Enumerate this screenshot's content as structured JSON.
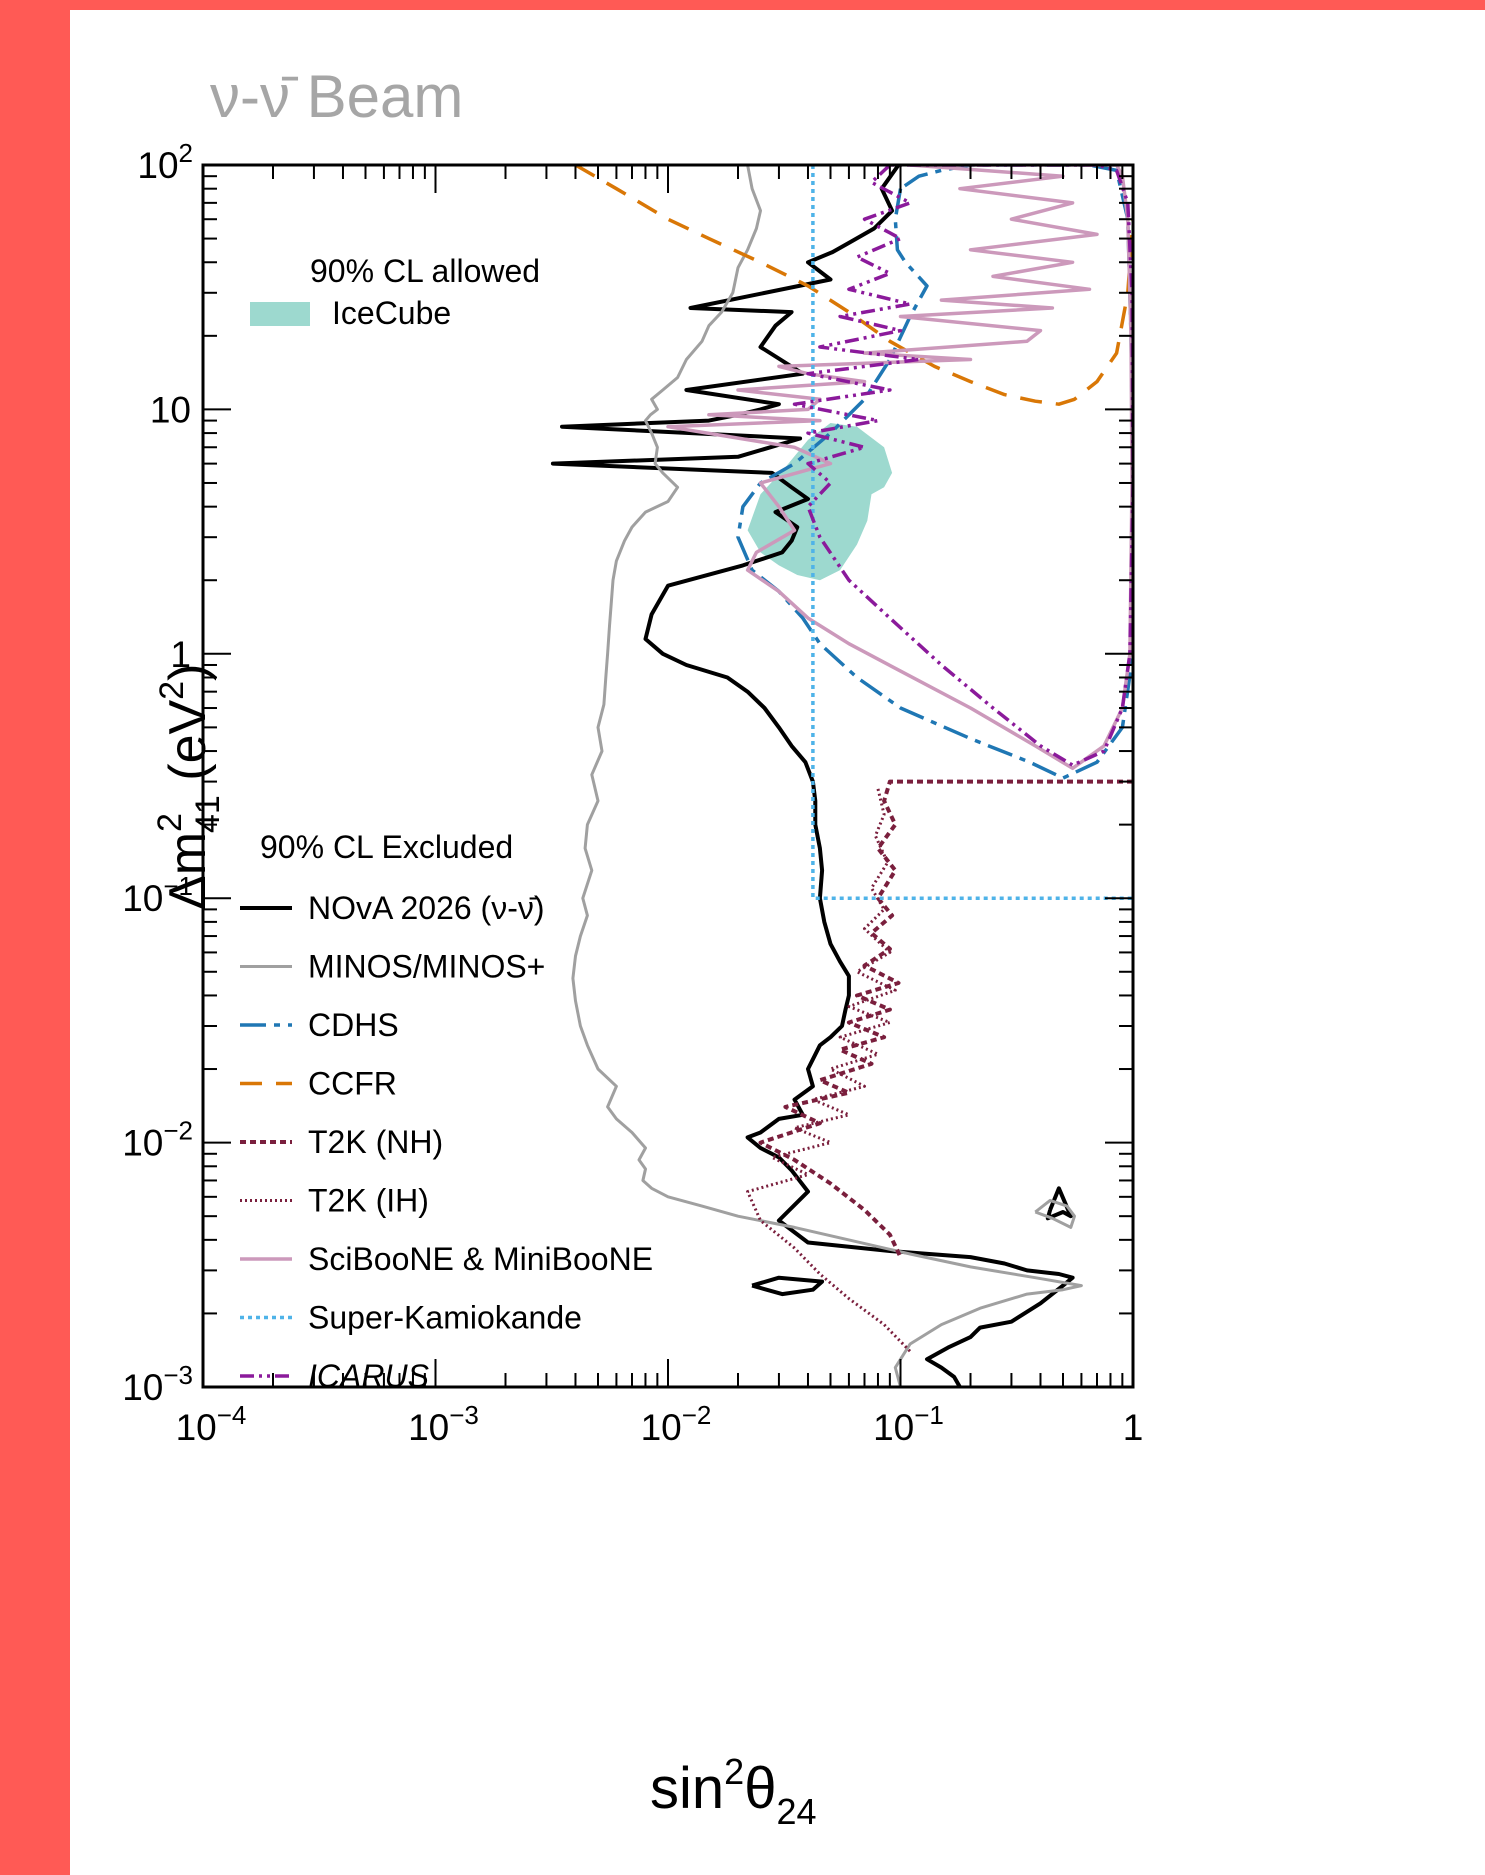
{
  "chart_data": {
    "type": "line",
    "title": "ν-ν̄ Beam",
    "x_label": {
      "base": "sin",
      "sup": "2",
      "main": "θ",
      "sub": "24"
    },
    "y_label": {
      "pre": "Δm",
      "sup": "2",
      "sub": "41",
      "post": " (eV",
      "post_sup": "2",
      "close": ")"
    },
    "x_scale": "log",
    "y_scale": "log",
    "xlim": [
      0.0001,
      1
    ],
    "ylim": [
      0.001,
      100
    ],
    "x_ticks": [
      {
        "v": 0.0001,
        "base": "10",
        "exp": "−4"
      },
      {
        "v": 0.001,
        "base": "10",
        "exp": "−3"
      },
      {
        "v": 0.01,
        "base": "10",
        "exp": "−2"
      },
      {
        "v": 0.1,
        "base": "10",
        "exp": "−1"
      },
      {
        "v": 1,
        "base": "1",
        "exp": ""
      }
    ],
    "y_ticks": [
      {
        "v": 0.001,
        "base": "10",
        "exp": "−3"
      },
      {
        "v": 0.01,
        "base": "10",
        "exp": "−2"
      },
      {
        "v": 0.1,
        "base": "10",
        "exp": "−1"
      },
      {
        "v": 1,
        "base": "1",
        "exp": ""
      },
      {
        "v": 10,
        "base": "10",
        "exp": ""
      },
      {
        "v": 100,
        "base": "10",
        "exp": "2"
      }
    ],
    "legend_allowed": {
      "header": "90% CL allowed",
      "entries": [
        {
          "label": "IceCube",
          "color": "#9dd9cf"
        }
      ]
    },
    "legend_excluded": {
      "header": "90% CL Excluded",
      "entries": [
        {
          "label": "NOvA 2026 (ν-ν̄)",
          "color": "#000000",
          "dash": "",
          "width": 4
        },
        {
          "label": "MINOS/MINOS+",
          "color": "#a0a0a0",
          "dash": "",
          "width": 3
        },
        {
          "label": "CDHS",
          "color": "#1f77b4",
          "dash": "26,8,6,8",
          "width": 3.5
        },
        {
          "label": "CCFR",
          "color": "#d97706",
          "dash": "22,14",
          "width": 3.5
        },
        {
          "label": "T2K (NH)",
          "color": "#7a1f3d",
          "dash": "6,4",
          "width": 4
        },
        {
          "label": "T2K (IH)",
          "color": "#7a1f3d",
          "dash": "2,3",
          "width": 3
        },
        {
          "label": "SciBooNE & MiniBooNE",
          "color": "#cc99bb",
          "dash": "",
          "width": 3.5
        },
        {
          "label": "Super-Kamiokande",
          "color": "#4fb3e8",
          "dash": "4,4",
          "width": 3.5
        },
        {
          "label": "ICARUS",
          "color": "#8b1a9b",
          "dash": "14,5,3,5,3,5",
          "width": 3.5,
          "italic": true
        }
      ]
    },
    "series": [
      {
        "name": "NOvA 2026 (ν-ν̄)",
        "color": "#000000",
        "dash": "",
        "width": 4,
        "x": [
          0.098,
          0.083,
          0.092,
          0.077,
          0.06,
          0.051,
          0.04,
          0.05,
          0.0125,
          0.034,
          0.029,
          0.025,
          0.038,
          0.012,
          0.03,
          0.025,
          0.02,
          0.015,
          0.0035,
          0.037,
          0.02,
          0.0032,
          0.028,
          0.034,
          0.04,
          0.029,
          0.036,
          0.034,
          0.031,
          0.021,
          0.01,
          0.0085,
          0.008,
          0.0095,
          0.012,
          0.018,
          0.022,
          0.026,
          0.03,
          0.034,
          0.039,
          0.042,
          0.043,
          0.043,
          0.045,
          0.046,
          0.045,
          0.047,
          0.05,
          0.055,
          0.06,
          0.06,
          0.058,
          0.056,
          0.05,
          0.045,
          0.04,
          0.042,
          0.035,
          0.038,
          0.03,
          0.025,
          0.022,
          0.025,
          0.03,
          0.034,
          0.04,
          0.03,
          0.04,
          0.09,
          0.2,
          0.28,
          0.35,
          0.48,
          0.55,
          0.5,
          0.4,
          0.3,
          0.22,
          0.2,
          0.16,
          0.13,
          0.15,
          0.17,
          0.18
        ],
        "y": [
          100,
          80,
          65,
          55,
          48,
          44,
          40,
          34,
          26,
          25,
          22,
          18,
          14,
          12,
          10.5,
          10,
          9.5,
          9,
          8.5,
          7.6,
          6.4,
          6,
          5.5,
          4.8,
          4.3,
          3.8,
          3.3,
          2.9,
          2.6,
          2.3,
          1.9,
          1.45,
          1.15,
          1.0,
          0.9,
          0.8,
          0.7,
          0.6,
          0.5,
          0.42,
          0.36,
          0.3,
          0.25,
          0.2,
          0.16,
          0.13,
          0.1,
          0.08,
          0.065,
          0.055,
          0.048,
          0.04,
          0.035,
          0.03,
          0.027,
          0.025,
          0.02,
          0.017,
          0.015,
          0.013,
          0.0125,
          0.011,
          0.0105,
          0.0095,
          0.0087,
          0.0077,
          0.0063,
          0.0048,
          0.0039,
          0.0036,
          0.0034,
          0.0032,
          0.003,
          0.0029,
          0.0028,
          0.0026,
          0.0022,
          0.00185,
          0.00175,
          0.0016,
          0.00145,
          0.0013,
          0.0012,
          0.0011,
          0.001
        ]
      },
      {
        "name": "NOvA 2026 (ν-ν̄)",
        "color": "#000000",
        "dash": "",
        "width": 4,
        "x": [
          0.023,
          0.03,
          0.046,
          0.042,
          0.031,
          0.023
        ],
        "y": [
          0.0026,
          0.0028,
          0.0027,
          0.0025,
          0.0024,
          0.0026
        ]
      },
      {
        "name": "NOvA 2026 (ν-ν̄)",
        "color": "#000000",
        "dash": "",
        "width": 4,
        "x": [
          0.44,
          0.48,
          0.54,
          0.5,
          0.43,
          0.44
        ],
        "y": [
          0.0053,
          0.0065,
          0.005,
          0.0052,
          0.0049,
          0.0053
        ]
      },
      {
        "name": "MINOS/MINOS+",
        "color": "#a0a0a0",
        "dash": "",
        "width": 3,
        "x": [
          0.022,
          0.023,
          0.025,
          0.024,
          0.022,
          0.02,
          0.019,
          0.017,
          0.015,
          0.014,
          0.012,
          0.011,
          0.0095,
          0.0085,
          0.009,
          0.0084,
          0.008,
          0.0085,
          0.009,
          0.0088,
          0.0095,
          0.011,
          0.01,
          0.008,
          0.007,
          0.0065,
          0.006,
          0.0058,
          0.0057,
          0.0056,
          0.0055,
          0.0054,
          0.0053,
          0.005,
          0.0052,
          0.0047,
          0.005,
          0.0045,
          0.0044,
          0.0047,
          0.0043,
          0.0045,
          0.0042,
          0.004,
          0.0039,
          0.004,
          0.0042,
          0.0045,
          0.005,
          0.006,
          0.0055,
          0.006,
          0.007,
          0.008,
          0.0075,
          0.008,
          0.0078,
          0.0085,
          0.01,
          0.014,
          0.02,
          0.035,
          0.06,
          0.11,
          0.2,
          0.38,
          0.6,
          0.5,
          0.35,
          0.22,
          0.15,
          0.11,
          0.095,
          0.1
        ],
        "y": [
          100,
          80,
          65,
          55,
          45,
          38,
          30,
          25,
          22,
          19,
          16,
          13.5,
          12,
          11,
          10,
          9.5,
          9,
          8,
          7,
          6,
          5.5,
          4.8,
          4.2,
          3.8,
          3.3,
          2.9,
          2.4,
          2.0,
          1.6,
          1.3,
          1.0,
          0.8,
          0.62,
          0.5,
          0.4,
          0.32,
          0.25,
          0.2,
          0.16,
          0.13,
          0.1,
          0.085,
          0.07,
          0.058,
          0.047,
          0.038,
          0.03,
          0.025,
          0.02,
          0.017,
          0.014,
          0.0125,
          0.011,
          0.0095,
          0.0085,
          0.0078,
          0.007,
          0.0065,
          0.006,
          0.0055,
          0.005,
          0.0045,
          0.004,
          0.0035,
          0.0031,
          0.0028,
          0.0026,
          0.0025,
          0.0024,
          0.0021,
          0.0018,
          0.0015,
          0.0012,
          0.001
        ]
      },
      {
        "name": "MINOS/MINOS+",
        "color": "#a0a0a0",
        "dash": "",
        "width": 3,
        "x": [
          0.38,
          0.44,
          0.52,
          0.56,
          0.54,
          0.45,
          0.38
        ],
        "y": [
          0.0052,
          0.0058,
          0.0055,
          0.005,
          0.0045,
          0.0049,
          0.0052
        ]
      },
      {
        "name": "CDHS",
        "color": "#1f77b4",
        "dash": "26,8,6,8",
        "width": 3.5,
        "x": [
          0.1,
          0.095,
          0.097,
          0.105,
          0.13,
          0.11,
          0.09,
          0.07,
          0.05,
          0.035,
          0.025,
          0.021,
          0.02,
          0.023,
          0.03,
          0.038,
          0.045,
          0.065,
          0.1,
          0.2,
          0.36,
          0.5,
          0.7,
          0.9,
          1.0,
          1.0,
          0.98,
          0.95,
          0.85,
          0.65,
          0.45,
          0.3,
          0.2,
          0.15,
          0.12,
          0.1
        ],
        "y": [
          80,
          60,
          45,
          40,
          32,
          24,
          16,
          11,
          8,
          6,
          5,
          4,
          3,
          2.2,
          1.8,
          1.4,
          1.1,
          0.8,
          0.6,
          0.45,
          0.36,
          0.31,
          0.36,
          0.5,
          1,
          5,
          20,
          60,
          95,
          100,
          100,
          100,
          100,
          95,
          90,
          80
        ]
      },
      {
        "name": "CCFR",
        "color": "#d97706",
        "dash": "22,14",
        "width": 3.5,
        "x": [
          0.004,
          0.006,
          0.01,
          0.015,
          0.025,
          0.04,
          0.06,
          0.09,
          0.14,
          0.2,
          0.28,
          0.38,
          0.48,
          0.56,
          0.7,
          0.85,
          0.95,
          1.0
        ],
        "y": [
          100,
          80,
          60,
          50,
          40,
          32,
          25,
          19,
          15,
          13,
          11.5,
          10.8,
          10.5,
          11,
          13,
          17,
          30,
          60
        ]
      },
      {
        "name": "T2K (NH)",
        "color": "#7a1f3d",
        "dash": "6,4",
        "width": 4,
        "x": [
          1.0,
          0.09,
          0.085,
          0.095,
          0.08,
          0.095,
          0.08,
          0.092,
          0.075,
          0.09,
          0.07,
          0.098,
          0.065,
          0.09,
          0.06,
          0.085,
          0.055,
          0.075,
          0.045,
          0.06,
          0.032,
          0.045,
          0.025,
          0.035,
          0.05,
          0.07,
          0.09,
          0.1
        ],
        "y": [
          0.3,
          0.3,
          0.25,
          0.2,
          0.16,
          0.13,
          0.1,
          0.085,
          0.072,
          0.062,
          0.053,
          0.045,
          0.04,
          0.035,
          0.031,
          0.027,
          0.024,
          0.021,
          0.018,
          0.016,
          0.014,
          0.012,
          0.01,
          0.0085,
          0.0068,
          0.0053,
          0.0042,
          0.0034
        ]
      },
      {
        "name": "T2K (IH)",
        "color": "#7a1f3d",
        "dash": "2,3",
        "width": 3,
        "x": [
          0.08,
          0.085,
          0.078,
          0.088,
          0.075,
          0.085,
          0.07,
          0.09,
          0.065,
          0.095,
          0.06,
          0.09,
          0.055,
          0.08,
          0.05,
          0.07,
          0.042,
          0.06,
          0.035,
          0.05,
          0.028,
          0.04,
          0.022,
          0.025,
          0.035,
          0.045,
          0.06,
          0.085,
          0.11
        ],
        "y": [
          0.28,
          0.22,
          0.18,
          0.14,
          0.11,
          0.09,
          0.075,
          0.06,
          0.05,
          0.042,
          0.036,
          0.031,
          0.027,
          0.023,
          0.02,
          0.017,
          0.015,
          0.013,
          0.0115,
          0.01,
          0.0087,
          0.0074,
          0.0063,
          0.0048,
          0.0037,
          0.0029,
          0.0023,
          0.0018,
          0.0014
        ]
      },
      {
        "name": "SciBooNE & MiniBooNE",
        "color": "#cc99bb",
        "dash": "",
        "width": 3.5,
        "x": [
          0.11,
          0.5,
          0.18,
          0.55,
          0.3,
          0.7,
          0.2,
          0.55,
          0.25,
          0.65,
          0.15,
          0.45,
          0.1,
          0.4,
          0.35,
          0.07,
          0.2,
          0.03,
          0.04,
          0.07,
          0.02,
          0.045,
          0.04,
          0.015,
          0.045,
          0.01,
          0.035,
          0.05,
          0.025,
          0.03,
          0.035,
          0.024,
          0.022,
          0.03,
          0.04,
          0.06,
          0.1,
          0.2,
          0.38,
          0.55,
          0.75,
          0.9,
          0.97,
          0.99,
          0.98,
          0.95,
          0.9,
          0.85,
          0.75,
          0.6,
          0.45,
          0.3,
          0.2,
          0.14,
          0.11
        ],
        "y": [
          100,
          90,
          80,
          70,
          60,
          52,
          45,
          40,
          35,
          31,
          28,
          26,
          24,
          21,
          19,
          17,
          16,
          15,
          14,
          13,
          12,
          11,
          10,
          9.5,
          9,
          8.5,
          7,
          6,
          5,
          4,
          3.2,
          2.6,
          2.2,
          1.8,
          1.4,
          1.1,
          0.85,
          0.6,
          0.42,
          0.34,
          0.42,
          0.6,
          1.0,
          5,
          20,
          60,
          90,
          100,
          100,
          100,
          100,
          100,
          100,
          100,
          100
        ]
      },
      {
        "name": "Super-Kamiokande",
        "color": "#4fb3e8",
        "dash": "4,4",
        "width": 3.5,
        "x": [
          0.042,
          0.042,
          1.0
        ],
        "y": [
          100,
          0.1,
          0.1
        ]
      },
      {
        "name": "ICARUS",
        "color": "#8b1a9b",
        "dash": "14,5,3,5,3,5",
        "width": 3.5,
        "x": [
          0.09,
          0.075,
          0.11,
          0.07,
          0.1,
          0.065,
          0.09,
          0.06,
          0.11,
          0.055,
          0.1,
          0.045,
          0.12,
          0.04,
          0.09,
          0.035,
          0.08,
          0.04,
          0.07,
          0.04,
          0.05,
          0.04,
          0.045,
          0.06,
          0.09,
          0.15,
          0.25,
          0.4,
          0.55,
          0.75,
          0.9,
          0.97,
          1.0,
          0.99,
          0.95,
          0.85,
          0.7,
          0.5,
          0.3,
          0.18,
          0.12,
          0.09
        ],
        "y": [
          100,
          85,
          70,
          60,
          50,
          42,
          36,
          31,
          27,
          24,
          21,
          18,
          16,
          14,
          12,
          10.5,
          9,
          8,
          7,
          6,
          5,
          4,
          3,
          2,
          1.4,
          0.9,
          0.6,
          0.42,
          0.35,
          0.4,
          0.6,
          1,
          5,
          30,
          70,
          95,
          100,
          100,
          100,
          100,
          100,
          100
        ]
      }
    ],
    "icecube_region": {
      "name": "IceCube",
      "color": "#9dd9cf",
      "x": [
        0.05,
        0.065,
        0.085,
        0.092,
        0.085,
        0.075,
        0.072,
        0.065,
        0.055,
        0.045,
        0.036,
        0.03,
        0.025,
        0.022,
        0.025,
        0.032,
        0.04,
        0.05
      ],
      "y": [
        8.8,
        8.5,
        7,
        5.5,
        4.8,
        4.5,
        3.5,
        2.8,
        2.2,
        2.0,
        2.1,
        2.3,
        2.6,
        3.2,
        4.5,
        5.8,
        7.5,
        8.8
      ]
    }
  }
}
